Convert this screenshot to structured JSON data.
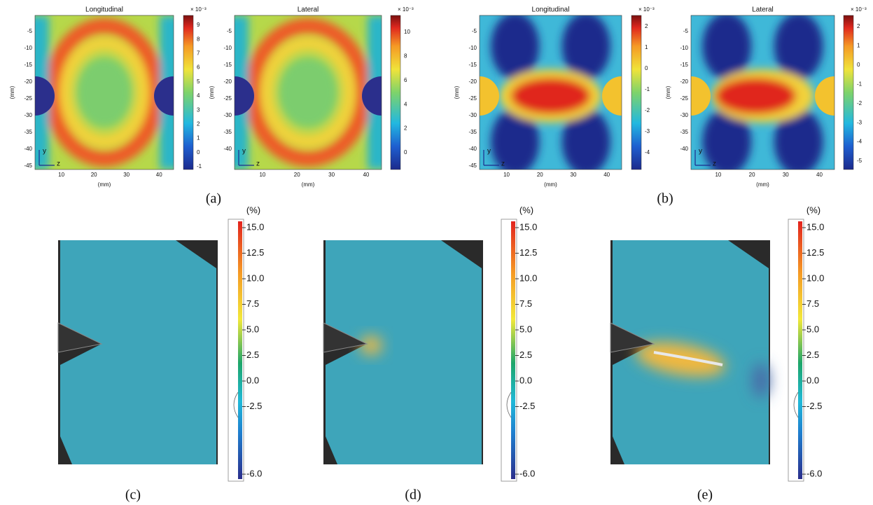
{
  "panels": [
    {
      "label": "(a)",
      "plots": [
        {
          "title": "Longitudinal",
          "colorbar_scale": "× 10⁻³",
          "colorbar_ticks": [
            "9",
            "8",
            "7",
            "6",
            "5",
            "4",
            "3",
            "2",
            "1",
            "0",
            "-1"
          ],
          "y_ticks": [
            "-5",
            "-10",
            "-15",
            "-20",
            "-25",
            "-30",
            "-35",
            "-40",
            "-45"
          ],
          "x_ticks": [
            "10",
            "20",
            "30",
            "40"
          ],
          "x_label": "(mm)",
          "y_label": "(mm)",
          "axis_y": "y",
          "axis_z": "z"
        },
        {
          "title": "Lateral",
          "colorbar_scale": "× 10⁻³",
          "colorbar_ticks": [
            "10",
            "8",
            "6",
            "4",
            "2",
            "0"
          ],
          "y_ticks": [
            "-5",
            "-10",
            "-15",
            "-20",
            "-25",
            "-30",
            "-35",
            "-40"
          ],
          "x_ticks": [
            "10",
            "20",
            "30",
            "40"
          ],
          "x_label": "(mm)",
          "y_label": "(mm)",
          "axis_y": "y",
          "axis_z": "z"
        }
      ]
    },
    {
      "label": "(b)",
      "plots": [
        {
          "title": "Longitudinal",
          "colorbar_scale": "× 10⁻³",
          "colorbar_ticks": [
            "2",
            "1",
            "0",
            "-1",
            "-2",
            "-3",
            "-4"
          ],
          "y_ticks": [
            "-5",
            "-10",
            "-15",
            "-20",
            "-25",
            "-30",
            "-35",
            "-40",
            "-45"
          ],
          "x_ticks": [
            "10",
            "20",
            "30",
            "40"
          ],
          "x_label": "(mm)",
          "y_label": "(mm)",
          "axis_y": "y",
          "axis_z": "z"
        },
        {
          "title": "Lateral",
          "colorbar_scale": "× 10⁻³",
          "colorbar_ticks": [
            "2",
            "1",
            "0",
            "-1",
            "-2",
            "-3",
            "-4",
            "-5"
          ],
          "y_ticks": [
            "-5",
            "-10",
            "-15",
            "-20",
            "-25",
            "-30",
            "-35",
            "-40"
          ],
          "x_ticks": [
            "10",
            "20",
            "30",
            "40"
          ],
          "x_label": "(mm)",
          "y_label": "(mm)",
          "axis_y": "y",
          "axis_z": "z"
        }
      ]
    },
    {
      "label": "(c)",
      "unit": "(%)",
      "colorbar_ticks": [
        "15.0",
        "12.5",
        "10.0",
        "7.5",
        "5.0",
        "2.5",
        "0.0",
        "-2.5",
        "-6.0"
      ]
    },
    {
      "label": "(d)",
      "unit": "(%)",
      "colorbar_ticks": [
        "15.0",
        "12.5",
        "10.0",
        "7.5",
        "5.0",
        "2.5",
        "0.0",
        "-2.5",
        "-6.0"
      ]
    },
    {
      "label": "(e)",
      "unit": "(%)",
      "colorbar_ticks": [
        "15.0",
        "12.5",
        "10.0",
        "7.5",
        "5.0",
        "2.5",
        "0.0",
        "-2.5",
        "-6.0"
      ]
    }
  ]
}
